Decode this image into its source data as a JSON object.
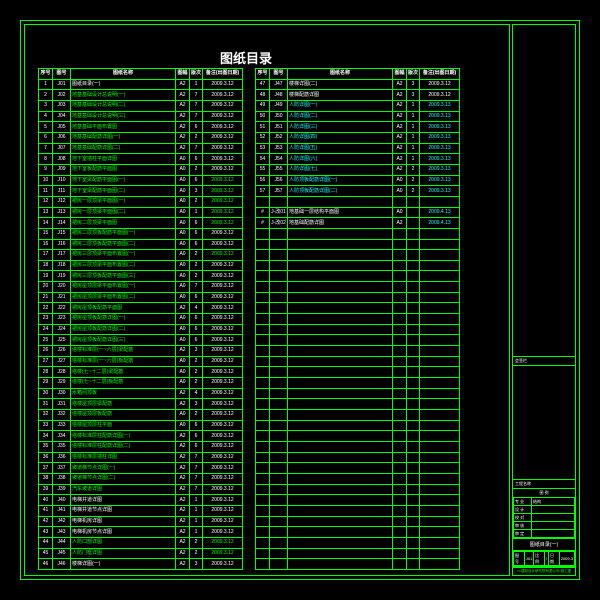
{
  "title": "图纸目录",
  "colors": {
    "line": "#00ff00",
    "green": "#00ff00",
    "cyan": "#00ffff",
    "white": "#ffffff",
    "bg": "#000000"
  },
  "headers": [
    "序号",
    "图号",
    "图纸名称",
    "图幅",
    "版次",
    "备注(出图日期)"
  ],
  "left_rows": [
    {
      "seq": "1",
      "id": "J01",
      "name": "图纸目录(一)",
      "nc": "white",
      "fmt": "A2",
      "ver": "1",
      "noteText": "2009.3.12",
      "noteC": "white"
    },
    {
      "seq": "2",
      "id": "J02",
      "name": "地基基础设计总说明(一)",
      "nc": "green",
      "fmt": "A2",
      "ver": "7",
      "noteText": "2009.3.12",
      "noteC": "white"
    },
    {
      "seq": "3",
      "id": "J03",
      "name": "地基基础设计总说明(二)",
      "nc": "green",
      "fmt": "A2",
      "ver": "7",
      "noteText": "2009.3.12",
      "noteC": "white"
    },
    {
      "seq": "4",
      "id": "J04",
      "name": "地基基础设计总说明(三)",
      "nc": "green",
      "fmt": "A2",
      "ver": "7",
      "noteText": "2009.3.12",
      "noteC": "white"
    },
    {
      "seq": "5",
      "id": "J05",
      "name": "地基基础平面布置图",
      "nc": "green",
      "fmt": "A2",
      "ver": "6",
      "noteText": "2009.3.12",
      "noteC": "white"
    },
    {
      "seq": "6",
      "id": "J06",
      "name": "地基基础配筋详图(一)",
      "nc": "green",
      "fmt": "A2",
      "ver": "2",
      "noteText": "2009.3.12",
      "noteC": "white"
    },
    {
      "seq": "7",
      "id": "J07",
      "name": "地基基础配筋详图(二)",
      "nc": "green",
      "fmt": "A2",
      "ver": "7",
      "noteText": "2009.3.12",
      "noteC": "white"
    },
    {
      "seq": "8",
      "id": "J08",
      "name": "地下室墙柱平面详图",
      "nc": "green",
      "fmt": "A0",
      "ver": "6",
      "noteText": "2009.3.12",
      "noteC": "white"
    },
    {
      "seq": "9",
      "id": "J09",
      "name": "地下室板配筋平面图",
      "nc": "green",
      "fmt": "A0",
      "ver": "2",
      "noteText": "2009.3.12",
      "noteC": "white"
    },
    {
      "seq": "10",
      "id": "J10",
      "name": "地下室梁配筋平面图(一)",
      "nc": "green",
      "fmt": "A0",
      "ver": "6",
      "noteText": "2009.3.12",
      "noteC": "green"
    },
    {
      "seq": "11",
      "id": "J11",
      "name": "地下室梁配筋平面图(二)",
      "nc": "green",
      "fmt": "A0",
      "ver": "3",
      "noteText": "2009.3.12",
      "noteC": "green"
    },
    {
      "seq": "12",
      "id": "J12",
      "name": "裙房一层顶梁平面图(一)",
      "nc": "green",
      "fmt": "A0",
      "ver": "2",
      "noteText": "2009.3.12",
      "noteC": "green"
    },
    {
      "seq": "13",
      "id": "J13",
      "name": "裙房一层顶梁平面图(二)",
      "nc": "green",
      "fmt": "A0",
      "ver": "1",
      "noteText": "2009.3.12",
      "noteC": "green"
    },
    {
      "seq": "14",
      "id": "J14",
      "name": "裙房二层顶梁平面图",
      "nc": "green",
      "fmt": "A0",
      "ver": "6",
      "noteText": "2009.3.12",
      "noteC": "green"
    },
    {
      "seq": "15",
      "id": "J15",
      "name": "裙房二层顶板配筋平面图(一)",
      "nc": "green",
      "fmt": "A0",
      "ver": "6",
      "noteText": "2009.3.12",
      "noteC": "white"
    },
    {
      "seq": "16",
      "id": "J16",
      "name": "裙房二层顶板配筋平面图(二)",
      "nc": "green",
      "fmt": "A0",
      "ver": "6",
      "noteText": "2009.3.12",
      "noteC": "white"
    },
    {
      "seq": "17",
      "id": "J17",
      "name": "裙房三层顶梁平面布置图(一)",
      "nc": "green",
      "fmt": "A0",
      "ver": "2",
      "noteText": "2009.3.12",
      "noteC": "green"
    },
    {
      "seq": "18",
      "id": "J18",
      "name": "裙房三层顶梁平面布置图(二)",
      "nc": "green",
      "fmt": "A0",
      "ver": "2",
      "noteText": "2009.3.12",
      "noteC": "white"
    },
    {
      "seq": "19",
      "id": "J19",
      "name": "裙房三层顶板配筋平面图(三)",
      "nc": "green",
      "fmt": "A0",
      "ver": "2",
      "noteText": "2009.3.12",
      "noteC": "white"
    },
    {
      "seq": "20",
      "id": "J20",
      "name": "裙房屋顶层梁平面布置图(一)",
      "nc": "green",
      "fmt": "A0",
      "ver": "7",
      "noteText": "2009.3.12",
      "noteC": "white"
    },
    {
      "seq": "21",
      "id": "J21",
      "name": "裙房屋顶层梁平面布置图(二)",
      "nc": "green",
      "fmt": "A0",
      "ver": "6",
      "noteText": "2009.3.12",
      "noteC": "white"
    },
    {
      "seq": "22",
      "id": "J22",
      "name": "裙房屋顶板配筋平面图",
      "nc": "green",
      "fmt": "A2",
      "ver": "4",
      "noteText": "2009.3.12",
      "noteC": "white"
    },
    {
      "seq": "23",
      "id": "J23",
      "name": "裙房屋顶板配筋详图(一)",
      "nc": "green",
      "fmt": "A0",
      "ver": "6",
      "noteText": "2009.3.12",
      "noteC": "white"
    },
    {
      "seq": "24",
      "id": "J24",
      "name": "裙房屋顶板配筋详图(二)",
      "nc": "green",
      "fmt": "A0",
      "ver": "6",
      "noteText": "2009.3.12",
      "noteC": "white"
    },
    {
      "seq": "25",
      "id": "J25",
      "name": "裙房屋顶板配筋详图(三)",
      "nc": "green",
      "fmt": "A0",
      "ver": "6",
      "noteText": "2009.3.12",
      "noteC": "white"
    },
    {
      "seq": "26",
      "id": "J26",
      "name": "塔楼标准层(一~六层)梁配筋",
      "nc": "green",
      "fmt": "A2",
      "ver": "3",
      "noteText": "2009.3.12",
      "noteC": "white"
    },
    {
      "seq": "27",
      "id": "J27",
      "name": "塔楼标准层(一~六层)板配筋",
      "nc": "green",
      "fmt": "A0",
      "ver": "2",
      "noteText": "2009.3.12",
      "noteC": "white"
    },
    {
      "seq": "28",
      "id": "J28",
      "name": "塔楼(七~十二层)梁配筋",
      "nc": "green",
      "fmt": "A0",
      "ver": "2",
      "noteText": "2009.3.12",
      "noteC": "white"
    },
    {
      "seq": "29",
      "id": "J29",
      "name": "塔楼(七~十二层)板配筋",
      "nc": "green",
      "fmt": "A0",
      "ver": "2",
      "noteText": "2009.3.12",
      "noteC": "white"
    },
    {
      "seq": "30",
      "id": "J30",
      "name": "水箱间顶板",
      "nc": "green",
      "fmt": "A2",
      "ver": "4",
      "noteText": "2009.3.12",
      "noteC": "white"
    },
    {
      "seq": "31",
      "id": "J31",
      "name": "塔楼屋顶层梁配筋",
      "nc": "green",
      "fmt": "A2",
      "ver": "3",
      "noteText": "2009.3.12",
      "noteC": "white"
    },
    {
      "seq": "32",
      "id": "J32",
      "name": "塔楼屋顶层板配筋",
      "nc": "green",
      "fmt": "A0",
      "ver": "2",
      "noteText": "2009.3.12",
      "noteC": "white"
    },
    {
      "seq": "33",
      "id": "J33",
      "name": "塔楼屋顶层柱平面",
      "nc": "green",
      "fmt": "A0",
      "ver": "6",
      "noteText": "2009.3.12",
      "noteC": "white"
    },
    {
      "seq": "34",
      "id": "J34",
      "name": "塔楼标准层柱配筋详图(一)",
      "nc": "green",
      "fmt": "A2",
      "ver": "6",
      "noteText": "2009.3.12",
      "noteC": "white"
    },
    {
      "seq": "35",
      "id": "J35",
      "name": "塔楼标准层柱配筋详图(二)",
      "nc": "green",
      "fmt": "A2",
      "ver": "6",
      "noteText": "2009.3.12",
      "noteC": "white"
    },
    {
      "seq": "36",
      "id": "J36",
      "name": "塔楼标准层墙柱详图",
      "nc": "green",
      "fmt": "A2",
      "ver": "7",
      "noteText": "2009.3.12",
      "noteC": "white"
    },
    {
      "seq": "37",
      "id": "J37",
      "name": "坡道梯节点详图(一)",
      "nc": "green",
      "fmt": "A2",
      "ver": "7",
      "noteText": "2009.3.12",
      "noteC": "white"
    },
    {
      "seq": "38",
      "id": "J38",
      "name": "坡道梯节点详图(二)",
      "nc": "green",
      "fmt": "A2",
      "ver": "7",
      "noteText": "2009.3.12",
      "noteC": "white"
    },
    {
      "seq": "39",
      "id": "J39",
      "name": "汽车坡道详图",
      "nc": "green",
      "fmt": "A2",
      "ver": "7",
      "noteText": "2009.3.12",
      "noteC": "white"
    },
    {
      "seq": "40",
      "id": "J40",
      "name": "电梯井道详图",
      "nc": "white",
      "fmt": "A2",
      "ver": "1",
      "noteText": "2009.3.12",
      "noteC": "white"
    },
    {
      "seq": "41",
      "id": "J41",
      "name": "电梯井道节点详图",
      "nc": "white",
      "fmt": "A2",
      "ver": "1",
      "noteText": "2009.3.12",
      "noteC": "white"
    },
    {
      "seq": "42",
      "id": "J42",
      "name": "电梯机房详图",
      "nc": "white",
      "fmt": "A2",
      "ver": "1",
      "noteText": "2009.3.12",
      "noteC": "white"
    },
    {
      "seq": "43",
      "id": "J43",
      "name": "电梯机房节点详图",
      "nc": "white",
      "fmt": "A2",
      "ver": "1",
      "noteText": "2009.3.12",
      "noteC": "white"
    },
    {
      "seq": "44",
      "id": "J44",
      "name": "人防口部详图",
      "nc": "green",
      "fmt": "A2",
      "ver": "2",
      "noteText": "2009.3.12",
      "noteC": "green"
    },
    {
      "seq": "45",
      "id": "J45",
      "name": "人防门框详图",
      "nc": "green",
      "fmt": "A2",
      "ver": "2",
      "noteText": "2009.3.12",
      "noteC": "green"
    },
    {
      "seq": "46",
      "id": "J46",
      "name": "楼梯详图(一)",
      "nc": "white",
      "fmt": "A2",
      "ver": "3",
      "noteText": "2009.3.12",
      "noteC": "white"
    }
  ],
  "right_rows": [
    {
      "seq": "47",
      "id": "J47",
      "name": "楼梯详图(二)",
      "nc": "white",
      "fmt": "A2",
      "ver": "3",
      "noteText": "2009.3.12",
      "noteC": "white"
    },
    {
      "seq": "48",
      "id": "J48",
      "name": "楼梯配筋详图",
      "nc": "white",
      "fmt": "A2",
      "ver": "3",
      "noteText": "2009.3.12",
      "noteC": "white"
    },
    {
      "seq": "49",
      "id": "J49",
      "name": "人防详图(一)",
      "nc": "cyan",
      "fmt": "A2",
      "ver": "1",
      "noteText": "2009.3.13",
      "noteC": "cyan"
    },
    {
      "seq": "50",
      "id": "J50",
      "name": "人防详图(二)",
      "nc": "cyan",
      "fmt": "A2",
      "ver": "1",
      "noteText": "2009.3.13",
      "noteC": "cyan"
    },
    {
      "seq": "51",
      "id": "J51",
      "name": "人防详图(三)",
      "nc": "cyan",
      "fmt": "A2",
      "ver": "1",
      "noteText": "2009.3.13",
      "noteC": "cyan"
    },
    {
      "seq": "52",
      "id": "J52",
      "name": "人防详图(四)",
      "nc": "cyan",
      "fmt": "A2",
      "ver": "1",
      "noteText": "2009.3.13",
      "noteC": "cyan"
    },
    {
      "seq": "53",
      "id": "J53",
      "name": "人防详图(五)",
      "nc": "cyan",
      "fmt": "A2",
      "ver": "1",
      "noteText": "2009.3.13",
      "noteC": "cyan"
    },
    {
      "seq": "54",
      "id": "J54",
      "name": "人防详图(六)",
      "nc": "cyan",
      "fmt": "A2",
      "ver": "1",
      "noteText": "2009.3.13",
      "noteC": "cyan"
    },
    {
      "seq": "55",
      "id": "J55",
      "name": "人防详图(七)",
      "nc": "cyan",
      "fmt": "A2",
      "ver": "2",
      "noteText": "2009.3.13",
      "noteC": "cyan"
    },
    {
      "seq": "56",
      "id": "J56",
      "name": "人防顶板配筋详图(一)",
      "nc": "cyan",
      "fmt": "A0",
      "ver": "2",
      "noteText": "2009.3.13",
      "noteC": "cyan"
    },
    {
      "seq": "57",
      "id": "J57",
      "name": "人防顶板配筋详图(二)",
      "nc": "cyan",
      "fmt": "A0",
      "ver": "2",
      "noteText": "2009.3.13",
      "noteC": "cyan"
    },
    {
      "seq": "",
      "id": "",
      "name": "",
      "nc": "white",
      "fmt": "",
      "ver": "",
      "noteText": "",
      "noteC": "white"
    },
    {
      "seq": "#",
      "id": "J-改01",
      "name": "地基础一层结构平面图",
      "nc": "white",
      "fmt": "A0",
      "ver": "",
      "noteText": "2009.4.13",
      "noteC": "cyan"
    },
    {
      "seq": "#",
      "id": "J-改02",
      "name": "地基础配筋详图",
      "nc": "white",
      "fmt": "A2",
      "ver": "",
      "noteText": "2009.4.13",
      "noteC": "cyan"
    }
  ],
  "right_empty_count": 32,
  "side": {
    "block1": "",
    "block2": "会签栏",
    "block3": "",
    "block4": "工程名称",
    "legend_title": "图 例",
    "legend_rows": [
      [
        "专 业",
        "结构"
      ],
      [
        "设 计",
        ""
      ],
      [
        "校 对",
        ""
      ],
      [
        "审 核",
        ""
      ],
      [
        "审 定",
        ""
      ]
    ],
    "sheet_title": "图纸目录(一)",
    "footer_row": [
      "图号",
      "J01",
      "比例",
      "/",
      "日期",
      "2009.3"
    ],
    "bottom_note": "××建筑设计研究院有限公司·施工图"
  }
}
